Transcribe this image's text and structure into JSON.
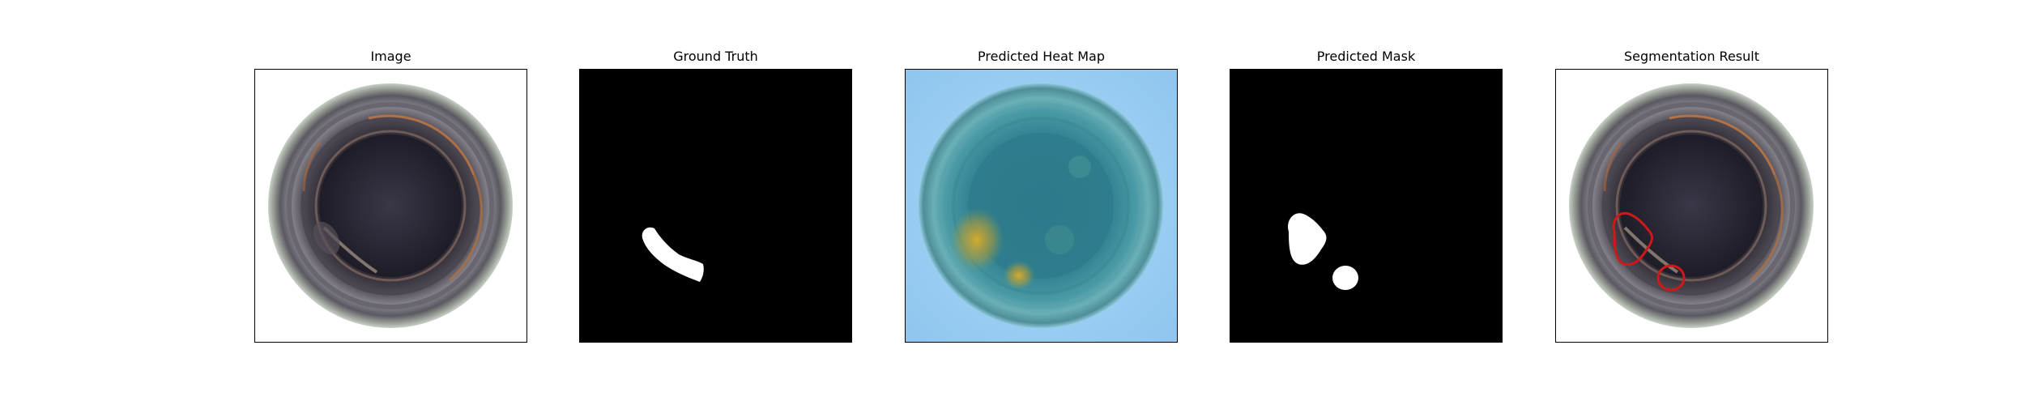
{
  "panels": [
    {
      "title": "Image",
      "kind": "bottle-image"
    },
    {
      "title": "Ground Truth",
      "kind": "binary-mask"
    },
    {
      "title": "Predicted Heat Map",
      "kind": "heat-map"
    },
    {
      "title": "Predicted Mask",
      "kind": "binary-mask"
    },
    {
      "title": "Segmentation Result",
      "kind": "overlay"
    }
  ],
  "colors": {
    "mask_foreground": "#ffffff",
    "mask_background": "#000000",
    "contour": "#d01818",
    "heat_low": "#8ec9f0",
    "heat_high": "#e8b020"
  }
}
